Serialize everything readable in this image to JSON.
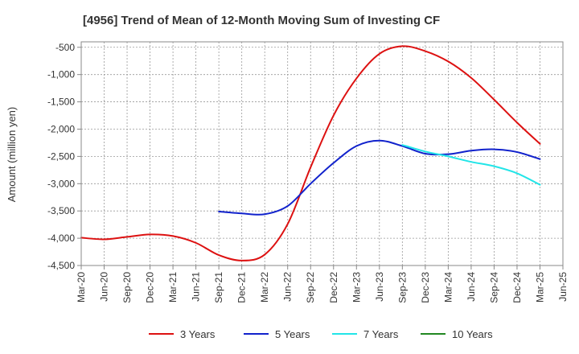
{
  "chart_data": {
    "type": "line",
    "title": "[4956]  Trend of Mean of 12-Month Moving Sum of Investing CF",
    "xlabel": "",
    "ylabel": "Amount (million yen)",
    "ylim": [
      -4500,
      -400
    ],
    "yticks": [
      -500,
      -1000,
      -1500,
      -2000,
      -2500,
      -3000,
      -3500,
      -4000,
      -4500
    ],
    "ytick_labels": [
      "-500",
      "-1,000",
      "-1,500",
      "-2,000",
      "-2,500",
      "-3,000",
      "-3,500",
      "-4,000",
      "-4,500"
    ],
    "categories": [
      "Mar-20",
      "Jun-20",
      "Sep-20",
      "Dec-20",
      "Mar-21",
      "Jun-21",
      "Sep-21",
      "Dec-21",
      "Mar-22",
      "Jun-22",
      "Sep-22",
      "Dec-22",
      "Mar-23",
      "Jun-23",
      "Sep-23",
      "Dec-23",
      "Mar-24",
      "Jun-24",
      "Sep-24",
      "Dec-24",
      "Mar-25",
      "Jun-25"
    ],
    "grid": true,
    "legend_position": "bottom",
    "series": [
      {
        "name": "3 Years",
        "color": "#dd1111",
        "values": [
          -3990,
          -4020,
          -3975,
          -3930,
          -3960,
          -4085,
          -4310,
          -4410,
          -4300,
          -3740,
          -2700,
          -1750,
          -1070,
          -620,
          -480,
          -570,
          -760,
          -1060,
          -1460,
          -1880,
          -2270,
          null
        ]
      },
      {
        "name": "5 Years",
        "color": "#1122cc",
        "values": [
          null,
          null,
          null,
          null,
          null,
          null,
          -3510,
          -3545,
          -3560,
          -3410,
          -3000,
          -2620,
          -2310,
          -2210,
          -2310,
          -2450,
          -2460,
          -2395,
          -2370,
          -2420,
          -2550,
          null
        ]
      },
      {
        "name": "7 Years",
        "color": "#22e5e8",
        "values": [
          null,
          null,
          null,
          null,
          null,
          null,
          null,
          null,
          null,
          null,
          null,
          null,
          null,
          null,
          -2290,
          -2410,
          -2500,
          -2600,
          -2680,
          -2810,
          -3020,
          null
        ]
      },
      {
        "name": "10 Years",
        "color": "#228822",
        "values": [
          null,
          null,
          null,
          null,
          null,
          null,
          null,
          null,
          null,
          null,
          null,
          null,
          null,
          null,
          null,
          null,
          null,
          null,
          null,
          null,
          null,
          null
        ]
      }
    ]
  }
}
